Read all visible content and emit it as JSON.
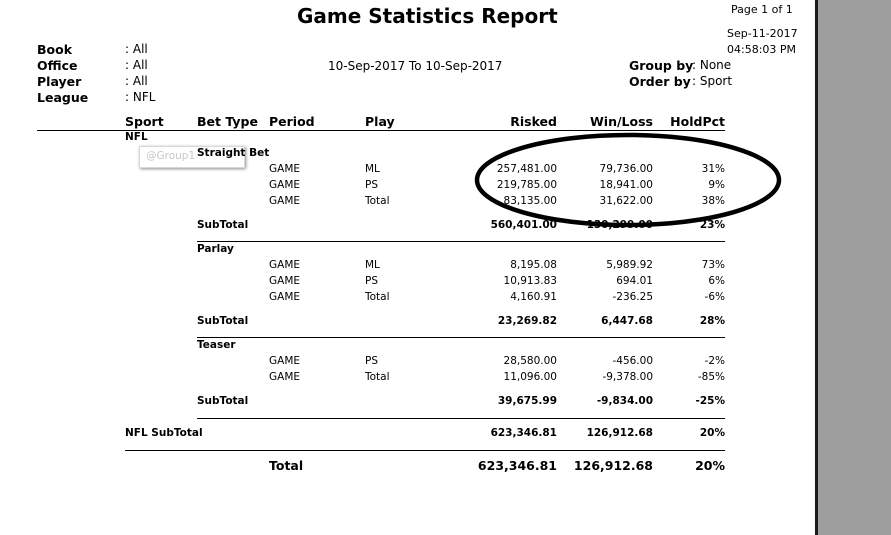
{
  "report": {
    "title": "Game Statistics Report",
    "page": "Page 1 of 1",
    "print_date": "Sep-11-2017",
    "print_time": "04:58:03 PM",
    "date_range": "10-Sep-2017  To  10-Sep-2017"
  },
  "filters": {
    "book_label": "Book",
    "book_value": ": All",
    "office_label": "Office",
    "office_value": ": All",
    "player_label": "Player",
    "player_value": ": All",
    "league_label": "League",
    "league_value": ": NFL",
    "group_label": "Group by",
    "group_value": ": None",
    "order_label": "Order by",
    "order_value": ": Sport"
  },
  "columns": {
    "sport": "Sport",
    "bet_type": "Bet Type",
    "period": "Period",
    "play": "Play",
    "risked": "Risked",
    "winloss": "Win/Loss",
    "holdpct": "HoldPct"
  },
  "sport_name": "NFL",
  "tooltip": "@Group1",
  "groups": [
    {
      "name": "Straight Bet",
      "rows": [
        {
          "period": "GAME",
          "play": "ML",
          "risked": "257,481.00",
          "winloss": "79,736.00",
          "holdpct": "31%"
        },
        {
          "period": "GAME",
          "play": "PS",
          "risked": "219,785.00",
          "winloss": "18,941.00",
          "holdpct": "9%"
        },
        {
          "period": "GAME",
          "play": "Total",
          "risked": "83,135.00",
          "winloss": "31,622.00",
          "holdpct": "38%"
        }
      ],
      "subtotal_label": "SubTotal",
      "subtotal": {
        "risked": "560,401.00",
        "winloss": "130,299.00",
        "holdpct": "23%"
      }
    },
    {
      "name": "Parlay",
      "rows": [
        {
          "period": "GAME",
          "play": "ML",
          "risked": "8,195.08",
          "winloss": "5,989.92",
          "holdpct": "73%"
        },
        {
          "period": "GAME",
          "play": "PS",
          "risked": "10,913.83",
          "winloss": "694.01",
          "holdpct": "6%"
        },
        {
          "period": "GAME",
          "play": "Total",
          "risked": "4,160.91",
          "winloss": "-236.25",
          "holdpct": "-6%"
        }
      ],
      "subtotal_label": "SubTotal",
      "subtotal": {
        "risked": "23,269.82",
        "winloss": "6,447.68",
        "holdpct": "28%"
      }
    },
    {
      "name": "Teaser",
      "rows": [
        {
          "period": "GAME",
          "play": "PS",
          "risked": "28,580.00",
          "winloss": "-456.00",
          "holdpct": "-2%"
        },
        {
          "period": "GAME",
          "play": "Total",
          "risked": "11,096.00",
          "winloss": "-9,378.00",
          "holdpct": "-85%"
        }
      ],
      "subtotal_label": "SubTotal",
      "subtotal": {
        "risked": "39,675.99",
        "winloss": "-9,834.00",
        "holdpct": "-25%"
      }
    }
  ],
  "sport_subtotal": {
    "label": "NFL  SubTotal",
    "risked": "623,346.81",
    "winloss": "126,912.68",
    "holdpct": "20%"
  },
  "grand_total": {
    "label": "Total",
    "risked": "623,346.81",
    "winloss": "126,912.68",
    "holdpct": "20%"
  }
}
